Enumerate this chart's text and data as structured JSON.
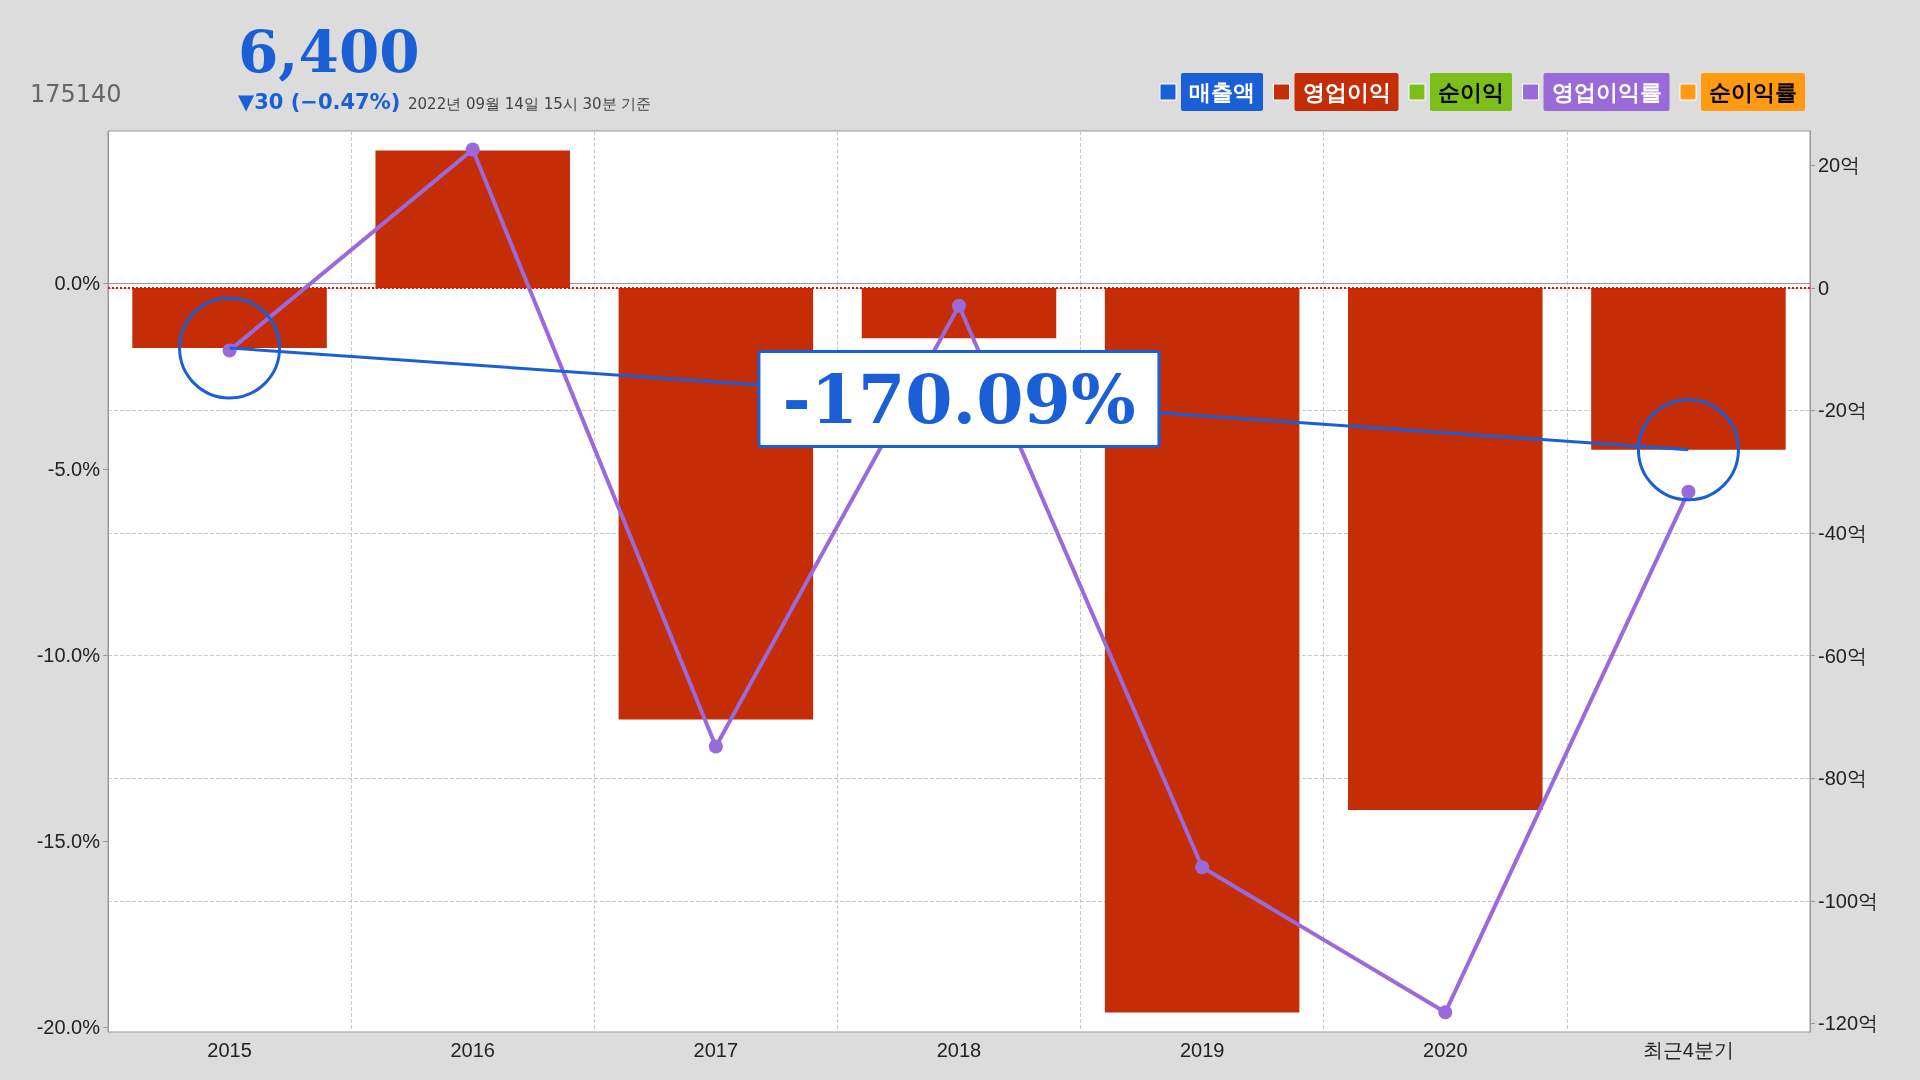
{
  "chart_data": {
    "type": "bar",
    "title": "6,400",
    "subtitle": "▼30 (−0.47%)",
    "annotations": [
      "175140",
      "2022년 09월 14일 15시 30분 기준",
      "-170.09%"
    ],
    "categories": [
      "2015",
      "2016",
      "2017",
      "2018",
      "2019",
      "2020",
      "최근4분기"
    ],
    "series": [
      {
        "name": "매출액",
        "axis": "y2",
        "color": "#1a5fd6",
        "values": [
          null,
          null,
          null,
          null,
          null,
          null,
          null
        ]
      },
      {
        "name": "영업이익",
        "axis": "y2",
        "color": "#c42d05",
        "values": [
          -9.8,
          22.4,
          -70.4,
          -8.2,
          -118.2,
          -85.2,
          -26.4
        ]
      },
      {
        "name": "순이익",
        "axis": "y2",
        "color": "#7cbf1a",
        "values": [
          null,
          null,
          null,
          null,
          null,
          null,
          null
        ]
      },
      {
        "name": "영업이익률",
        "type": "line",
        "color": "#9b6ad9",
        "values": [
          -1.8,
          3.6,
          -12.45,
          -0.6,
          -15.7,
          -19.6,
          -5.6
        ]
      },
      {
        "name": "순이익률",
        "type": "line",
        "color": "#ff9a12",
        "values": [
          null,
          null,
          null,
          null,
          null,
          null,
          null
        ]
      }
    ],
    "ylim": [
      -20.13,
      4.1
    ],
    "yticks": [
      {
        "value": 0,
        "label": "0.0%"
      },
      {
        "value": -5,
        "label": "-5.0%"
      },
      {
        "value": -10,
        "label": "-10.0%"
      },
      {
        "value": -15,
        "label": "-15.0%"
      },
      {
        "value": -20,
        "label": "-20.0%"
      }
    ],
    "y2lim": [
      -121.4,
      25.6
    ],
    "y2ticks": [
      {
        "value": 20,
        "label": "20억"
      },
      0,
      {
        "value": -20,
        "label": "-20억"
      },
      {
        "value": -40,
        "label": "-40억"
      },
      {
        "value": -60,
        "label": "-60억"
      },
      {
        "value": -80,
        "label": "-80억"
      },
      {
        "value": -100,
        "label": "-100억"
      },
      {
        "value": -120,
        "label": "-120억"
      }
    ],
    "ref_lines": [
      {
        "axis": "y2",
        "value": 0,
        "color": "#ff0000",
        "line_style": "dotted"
      }
    ],
    "grid": true,
    "legend": "top right",
    "marker": "circle",
    "line_style": "solid"
  }
}
